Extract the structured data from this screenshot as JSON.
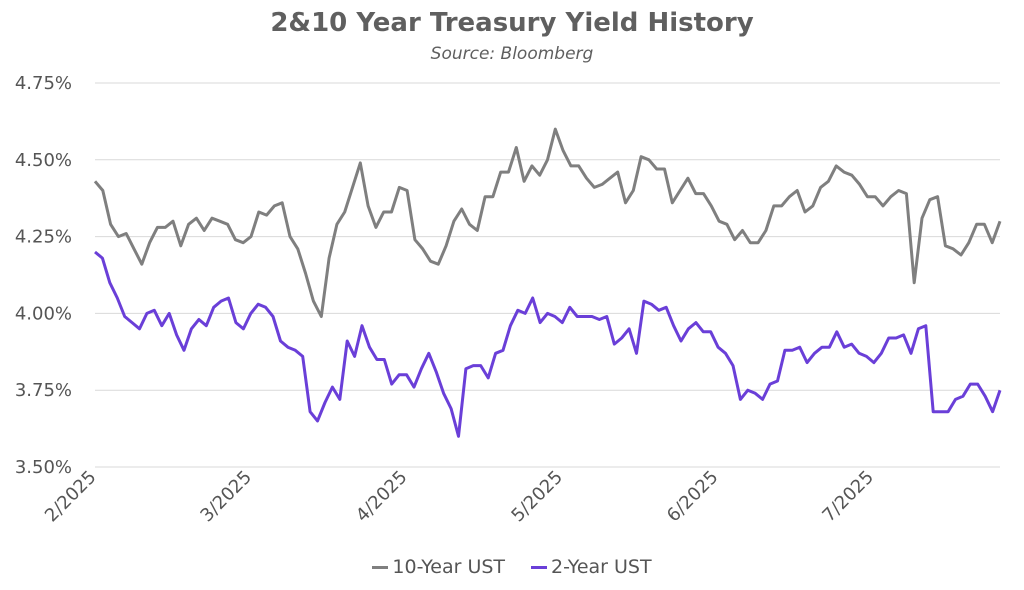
{
  "chart_data": {
    "type": "line",
    "title": "2&10 Year Treasury Yield History",
    "subtitle": "Source: Bloomberg",
    "x_tick_labels": [
      "2/2025",
      "3/2025",
      "4/2025",
      "5/2025",
      "6/2025",
      "7/2025"
    ],
    "y_tick_labels": [
      "3.50%",
      "3.75%",
      "4.00%",
      "4.25%",
      "4.50%",
      "4.75%"
    ],
    "ylim": [
      3.5,
      4.75
    ],
    "y_ticks": [
      3.5,
      3.75,
      4.0,
      4.25,
      4.5,
      4.75
    ],
    "grid": "horizontal",
    "legend_position": "bottom",
    "series": [
      {
        "name": "10-Year UST",
        "color": "#7f7f7f",
        "values": [
          4.43,
          4.4,
          4.29,
          4.25,
          4.26,
          4.21,
          4.16,
          4.23,
          4.28,
          4.28,
          4.3,
          4.22,
          4.29,
          4.31,
          4.27,
          4.31,
          4.3,
          4.29,
          4.24,
          4.23,
          4.25,
          4.33,
          4.32,
          4.35,
          4.36,
          4.25,
          4.21,
          4.13,
          4.04,
          3.99,
          4.18,
          4.29,
          4.33,
          4.41,
          4.49,
          4.35,
          4.28,
          4.33,
          4.33,
          4.41,
          4.4,
          4.24,
          4.21,
          4.17,
          4.16,
          4.22,
          4.3,
          4.34,
          4.29,
          4.27,
          4.38,
          4.38,
          4.46,
          4.46,
          4.54,
          4.43,
          4.48,
          4.45,
          4.5,
          4.6,
          4.53,
          4.48,
          4.48,
          4.44,
          4.41,
          4.42,
          4.44,
          4.46,
          4.36,
          4.4,
          4.51,
          4.5,
          4.47,
          4.47,
          4.36,
          4.4,
          4.44,
          4.39,
          4.39,
          4.35,
          4.3,
          4.29,
          4.24,
          4.27,
          4.23,
          4.23,
          4.27,
          4.35,
          4.35,
          4.38,
          4.4,
          4.33,
          4.35,
          4.41,
          4.43,
          4.48,
          4.46,
          4.45,
          4.42,
          4.38,
          4.38,
          4.35,
          4.38,
          4.4,
          4.39,
          4.1,
          4.31,
          4.37,
          4.38,
          4.22,
          4.21,
          4.19,
          4.23,
          4.29,
          4.29,
          4.23,
          4.3
        ]
      },
      {
        "name": "2-Year UST",
        "color": "#6a3fd8",
        "values": [
          4.2,
          4.18,
          4.1,
          4.05,
          3.99,
          3.97,
          3.95,
          4.0,
          4.01,
          3.96,
          4.0,
          3.93,
          3.88,
          3.95,
          3.98,
          3.96,
          4.02,
          4.04,
          4.05,
          3.97,
          3.95,
          4.0,
          4.03,
          4.02,
          3.99,
          3.91,
          3.89,
          3.88,
          3.86,
          3.68,
          3.65,
          3.71,
          3.76,
          3.72,
          3.91,
          3.86,
          3.96,
          3.89,
          3.85,
          3.85,
          3.77,
          3.8,
          3.8,
          3.76,
          3.82,
          3.87,
          3.81,
          3.74,
          3.69,
          3.6,
          3.82,
          3.83,
          3.83,
          3.79,
          3.87,
          3.88,
          3.96,
          4.01,
          4.0,
          4.05,
          3.97,
          4.0,
          3.99,
          3.97,
          4.02,
          3.99,
          3.99,
          3.99,
          3.98,
          3.99,
          3.9,
          3.92,
          3.95,
          3.87,
          4.04,
          4.03,
          4.01,
          4.02,
          3.96,
          3.91,
          3.95,
          3.97,
          3.94,
          3.94,
          3.89,
          3.87,
          3.83,
          3.72,
          3.75,
          3.74,
          3.72,
          3.77,
          3.78,
          3.88,
          3.88,
          3.89,
          3.84,
          3.87,
          3.89,
          3.89,
          3.94,
          3.89,
          3.9,
          3.87,
          3.86,
          3.84,
          3.87,
          3.92,
          3.92,
          3.93,
          3.87,
          3.95,
          3.96,
          3.68,
          3.68,
          3.68,
          3.72,
          3.73,
          3.77,
          3.77,
          3.73,
          3.68,
          3.75
        ]
      }
    ]
  }
}
